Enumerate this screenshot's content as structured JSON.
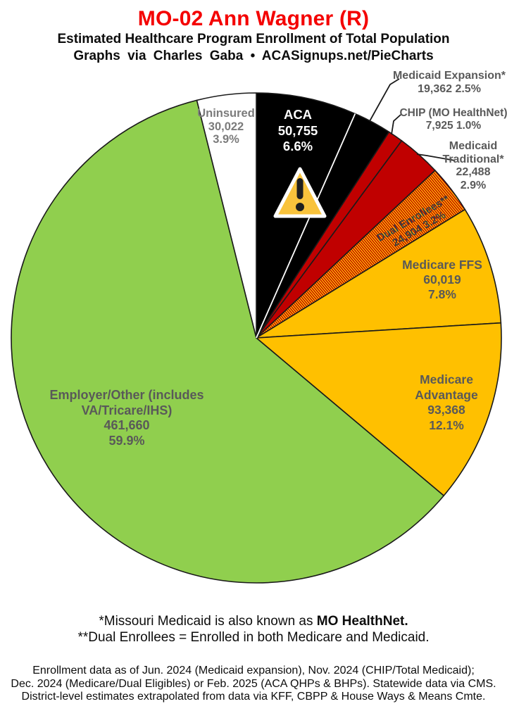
{
  "header": {
    "title": "MO-02 Ann Wagner (R)",
    "subtitle": "Estimated Healthcare Program Enrollment of Total Population",
    "credit": "Graphs via Charles Gaba • ACASignups.net/PieCharts"
  },
  "chart_data": {
    "type": "pie",
    "title": "MO-02 Ann Wagner (R)",
    "subtitle": "Estimated Healthcare Program Enrollment of Total Population",
    "units": "people enrolled",
    "start_angle": "12 o'clock",
    "direction": "clockwise",
    "legend_position": "labels on and around slices",
    "slices": [
      {
        "id": "aca",
        "label": "ACA",
        "value": 50755,
        "value_display": "50,755",
        "pct": 6.6,
        "pct_display": "6.6%",
        "color": "#000000"
      },
      {
        "id": "medicaid-expansion",
        "label": "Medicaid Expansion*",
        "value": 19362,
        "value_display": "19,362",
        "pct": 2.5,
        "pct_display": "2.5%",
        "color": "#000000"
      },
      {
        "id": "chip",
        "label": "CHIP (MO HealthNet)",
        "value": 7925,
        "value_display": "7,925",
        "pct": 1.0,
        "pct_display": "1.0%",
        "color": "#C00000"
      },
      {
        "id": "medicaid-traditional",
        "label": "Medicaid Traditional*",
        "value": 22488,
        "value_display": "22,488",
        "pct": 2.9,
        "pct_display": "2.9%",
        "color": "#C00000"
      },
      {
        "id": "dual-enrollees",
        "label": "Dual Enrollees**",
        "value": 24904,
        "value_display": "24,904",
        "pct": 3.2,
        "pct_display": "3.2%",
        "color": "#C00000",
        "pattern": "stripes",
        "pattern_colors": [
          "#C00000",
          "#FFC000"
        ]
      },
      {
        "id": "medicare-ffs",
        "label": "Medicare FFS",
        "value": 60019,
        "value_display": "60,019",
        "pct": 7.8,
        "pct_display": "7.8%",
        "color": "#FFC000"
      },
      {
        "id": "medicare-advantage",
        "label": "Medicare Advantage",
        "value": 93368,
        "value_display": "93,368",
        "pct": 12.1,
        "pct_display": "12.1%",
        "color": "#FFC000"
      },
      {
        "id": "employer-other",
        "label": "Employer/Other (includes VA/Tricare/IHS)",
        "value": 461660,
        "value_display": "461,660",
        "pct": 59.9,
        "pct_display": "59.9%",
        "color": "#90CF4E"
      },
      {
        "id": "uninsured",
        "label": "Uninsured",
        "value": 30022,
        "value_display": "30,022",
        "pct": 3.9,
        "pct_display": "3.9%",
        "color": "#FFFFFF"
      }
    ]
  },
  "icons": {
    "warning_triangle": "warning-triangle-icon"
  },
  "colors": {
    "title_red": "#f40000",
    "label_gray": "#595959",
    "pie_outline": "#1a1a1a",
    "warning_fill": "#F9C33C"
  },
  "footnotes": {
    "line1_prefix": "*Missouri Medicaid is also known as ",
    "line1_bold": "MO HealthNet",
    "line1_suffix": ".",
    "line2": "**Dual Enrollees = Enrolled in both Medicare and Medicaid.",
    "source_line1": "Enrollment data as of Jun. 2024 (Medicaid expansion), Nov. 2024 (CHIP/Total Medicaid);",
    "source_line2": "Dec. 2024 (Medicare/Dual Eligibles) or Feb. 2025 (ACA QHPs & BHPs). Statewide data via CMS.",
    "source_line3": "District-level estimates extrapolated from data via KFF, CBPP & House Ways & Means Cmte."
  }
}
